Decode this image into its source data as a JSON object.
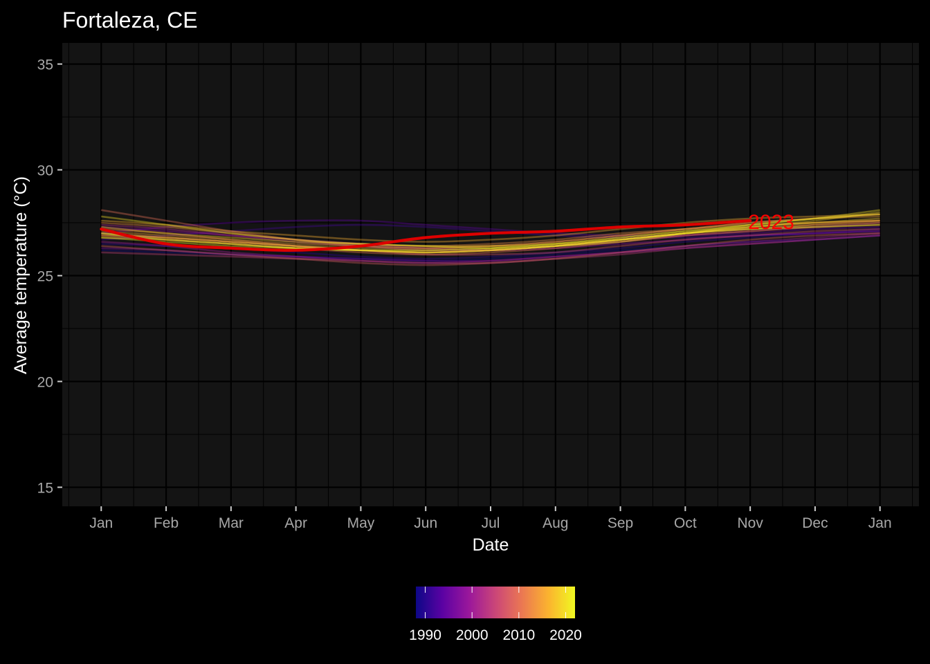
{
  "chart_data": {
    "type": "line",
    "title": "Fortaleza, CE",
    "xlabel": "Date",
    "ylabel": "Average temperature (°C)",
    "x_tick_labels": [
      "Jan",
      "Feb",
      "Mar",
      "Apr",
      "May",
      "Jun",
      "Jul",
      "Aug",
      "Sep",
      "Oct",
      "Nov",
      "Dec",
      "Jan"
    ],
    "y_ticks": [
      15,
      20,
      25,
      30,
      35
    ],
    "ylim": [
      14.1,
      36.0
    ],
    "xlim_month_index": [
      -0.6,
      12.6
    ],
    "grid": true,
    "background_color": "#000000",
    "panel_color": "#141414",
    "color_scale": {
      "name": "plasma",
      "range": [
        1988,
        2022
      ],
      "ticks": [
        1990,
        2000,
        2010,
        2020
      ],
      "colors": [
        "#0d0887",
        "#5b02a3",
        "#9a179b",
        "#cb4678",
        "#eb7852",
        "#fbb32f",
        "#f0f921"
      ]
    },
    "legend_position": "bottom",
    "highlight": {
      "name": "2023",
      "color": "#dd0000",
      "label_color": "#ff0000",
      "x_month_index": [
        0,
        1,
        2,
        3,
        4,
        5,
        6,
        7,
        8,
        9,
        10
      ],
      "values": [
        27.2,
        26.5,
        26.3,
        26.2,
        26.4,
        26.8,
        27.0,
        27.1,
        27.3,
        27.4,
        27.6
      ]
    },
    "series_x_month_index": [
      0,
      1,
      2,
      3,
      4,
      5,
      6,
      7,
      8,
      9,
      10,
      11,
      12
    ],
    "series": [
      {
        "year": 1988,
        "values": [
          26.2,
          26.1,
          26.0,
          25.9,
          25.8,
          25.7,
          25.8,
          26.0,
          26.2,
          26.4,
          26.6,
          26.7,
          26.9
        ]
      },
      {
        "year": 1990,
        "values": [
          26.5,
          26.4,
          26.3,
          26.1,
          25.9,
          25.8,
          25.9,
          26.1,
          26.3,
          26.6,
          26.8,
          27.0,
          27.1
        ]
      },
      {
        "year": 1992,
        "values": [
          26.7,
          26.9,
          27.1,
          27.3,
          27.4,
          27.3,
          27.1,
          26.9,
          26.8,
          26.8,
          26.9,
          27.0,
          27.2
        ]
      },
      {
        "year": 1994,
        "values": [
          27.0,
          27.3,
          27.5,
          27.6,
          27.6,
          27.4,
          27.2,
          27.0,
          26.9,
          26.9,
          27.0,
          27.2,
          27.3
        ]
      },
      {
        "year": 1996,
        "values": [
          26.3,
          26.2,
          26.0,
          25.9,
          25.8,
          25.7,
          25.7,
          25.9,
          26.1,
          26.3,
          26.5,
          26.7,
          26.9
        ]
      },
      {
        "year": 1998,
        "values": [
          27.3,
          27.1,
          26.9,
          26.7,
          26.5,
          26.3,
          26.2,
          26.3,
          26.5,
          26.7,
          26.9,
          27.0,
          27.1
        ]
      },
      {
        "year": 2000,
        "values": [
          26.6,
          26.4,
          26.1,
          25.9,
          25.7,
          25.6,
          25.7,
          25.9,
          26.1,
          26.4,
          26.6,
          26.8,
          27.0
        ]
      },
      {
        "year": 2002,
        "values": [
          27.4,
          27.2,
          26.9,
          26.6,
          26.4,
          26.2,
          26.2,
          26.4,
          26.6,
          26.9,
          27.1,
          27.3,
          27.5
        ]
      },
      {
        "year": 2004,
        "values": [
          26.1,
          26.0,
          25.9,
          25.8,
          25.7,
          25.6,
          25.6,
          25.8,
          26.0,
          26.3,
          26.5,
          26.7,
          26.9
        ]
      },
      {
        "year": 2006,
        "values": [
          27.0,
          26.8,
          26.6,
          26.4,
          26.2,
          26.0,
          26.0,
          26.1,
          26.4,
          26.7,
          26.9,
          27.1,
          27.2
        ]
      },
      {
        "year": 2008,
        "values": [
          26.4,
          26.2,
          26.0,
          25.8,
          25.6,
          25.5,
          25.6,
          25.8,
          26.1,
          26.4,
          26.7,
          26.9,
          27.0
        ]
      },
      {
        "year": 2010,
        "values": [
          28.1,
          27.6,
          27.1,
          26.7,
          26.4,
          26.3,
          26.4,
          26.6,
          26.9,
          27.2,
          27.5,
          27.7,
          27.9
        ]
      },
      {
        "year": 2011,
        "values": [
          26.9,
          26.7,
          26.5,
          26.3,
          26.1,
          26.0,
          26.1,
          26.3,
          26.6,
          26.9,
          27.1,
          27.3,
          27.4
        ]
      },
      {
        "year": 2012,
        "values": [
          27.2,
          27.0,
          26.7,
          26.4,
          26.2,
          26.1,
          26.2,
          26.4,
          26.7,
          27.0,
          27.2,
          27.4,
          27.6
        ]
      },
      {
        "year": 2013,
        "values": [
          27.5,
          27.3,
          27.0,
          26.7,
          26.5,
          26.4,
          26.5,
          26.7,
          27.0,
          27.2,
          27.4,
          27.5,
          27.6
        ]
      },
      {
        "year": 2014,
        "values": [
          26.9,
          26.8,
          26.6,
          26.4,
          26.2,
          26.1,
          26.2,
          26.4,
          26.7,
          27.0,
          27.2,
          27.4,
          27.5
        ]
      },
      {
        "year": 2015,
        "values": [
          27.1,
          26.9,
          26.7,
          26.5,
          26.4,
          26.3,
          26.4,
          26.6,
          26.9,
          27.2,
          27.5,
          27.7,
          27.8
        ]
      },
      {
        "year": 2016,
        "values": [
          27.6,
          27.4,
          27.1,
          26.9,
          26.7,
          26.6,
          26.7,
          26.9,
          27.2,
          27.5,
          27.7,
          27.8,
          27.9
        ]
      },
      {
        "year": 2017,
        "values": [
          26.8,
          26.7,
          26.5,
          26.3,
          26.2,
          26.1,
          26.2,
          26.4,
          26.7,
          27.0,
          27.3,
          27.5,
          27.6
        ]
      },
      {
        "year": 2018,
        "values": [
          27.0,
          26.8,
          26.6,
          26.4,
          26.3,
          26.2,
          26.3,
          26.5,
          26.8,
          27.1,
          27.3,
          27.5,
          27.7
        ]
      },
      {
        "year": 2019,
        "values": [
          27.3,
          27.0,
          26.8,
          26.6,
          26.5,
          26.4,
          26.4,
          26.5,
          26.7,
          27.0,
          27.3,
          27.6,
          28.0
        ]
      },
      {
        "year": 2020,
        "values": [
          27.8,
          27.4,
          27.0,
          26.7,
          26.5,
          26.4,
          26.3,
          26.4,
          26.6,
          27.0,
          27.4,
          27.7,
          28.1
        ]
      },
      {
        "year": 2021,
        "values": [
          26.8,
          26.6,
          26.4,
          26.3,
          26.2,
          26.2,
          26.3,
          26.5,
          26.8,
          27.1,
          27.4,
          27.7,
          27.9
        ]
      },
      {
        "year": 2022,
        "values": [
          27.0,
          26.7,
          26.5,
          26.3,
          26.2,
          26.1,
          26.2,
          26.4,
          26.7,
          27.0,
          27.2,
          27.3,
          27.4
        ]
      }
    ]
  }
}
